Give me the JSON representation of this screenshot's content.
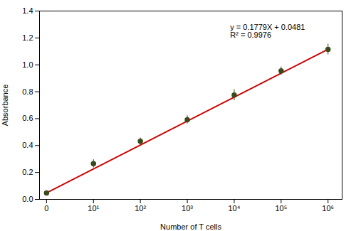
{
  "chart_data": {
    "type": "scatter",
    "x_label": "Number of T cells",
    "y_label": "Absorbance",
    "series": [
      {
        "type": "line",
        "color": "#cc0000",
        "x": [
          0,
          6
        ],
        "values": [
          0.0481,
          1.1155
        ]
      },
      {
        "type": "scatter",
        "color": "#3a4a1a",
        "marker": "circle",
        "x": [
          0,
          1,
          2,
          3,
          4,
          5,
          6
        ],
        "values": [
          0.048,
          0.265,
          0.432,
          0.592,
          0.775,
          0.955,
          1.115
        ],
        "errors": [
          0.01,
          0.03,
          0.025,
          0.03,
          0.04,
          0.03,
          0.04
        ]
      }
    ],
    "annotations": [
      {
        "text": "y = 0.1779X + 0.0481\nR² = 0.9976"
      }
    ],
    "xlim": [
      -0.15,
      6.3
    ],
    "xticks": [
      0,
      {
        "value": 1,
        "label": "10¹"
      },
      {
        "value": 2,
        "label": "10²"
      },
      {
        "value": 3,
        "label": "10³"
      },
      {
        "value": 4,
        "label": "10⁴"
      },
      {
        "value": 5,
        "label": "10⁵"
      },
      {
        "value": 6,
        "label": "10⁶"
      }
    ],
    "ylim": [
      0,
      1.4
    ],
    "yticks": [
      {
        "value": 0,
        "label": "0.0"
      },
      0.2,
      0.4,
      0.6,
      0.8,
      {
        "value": 1,
        "label": "1.0"
      },
      1.2,
      1.4
    ],
    "grid": false
  }
}
